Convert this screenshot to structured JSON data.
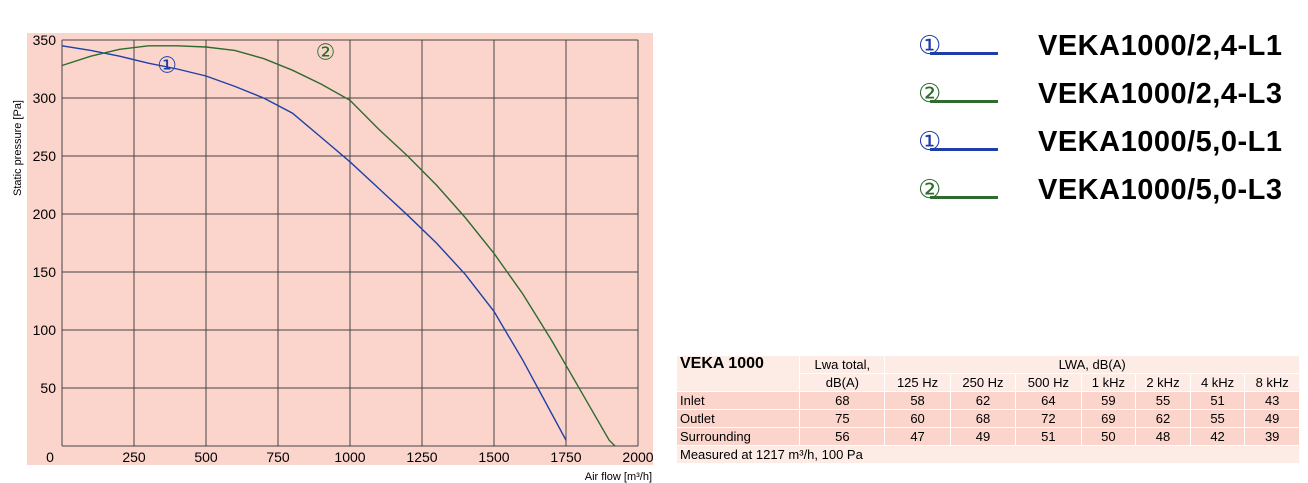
{
  "chart_data": {
    "type": "line",
    "xlabel": "Air flow [m³/h]",
    "ylabel": "Static pressure [Pa]",
    "xlim": [
      0,
      2000
    ],
    "ylim": [
      0,
      350
    ],
    "xticks": [
      0,
      250,
      500,
      750,
      1000,
      1250,
      1500,
      1750,
      2000
    ],
    "yticks": [
      50,
      100,
      150,
      200,
      250,
      300,
      350
    ],
    "grid": true,
    "series": [
      {
        "name": "①",
        "color": "#1f3fa8",
        "x": [
          0,
          100,
          200,
          300,
          400,
          500,
          600,
          700,
          800,
          900,
          1000,
          1100,
          1200,
          1300,
          1400,
          1500,
          1600,
          1700,
          1750
        ],
        "y": [
          345,
          341,
          336,
          330,
          325,
          319,
          310,
          300,
          287,
          266,
          245,
          222,
          199,
          175,
          148,
          116,
          74,
          28,
          5
        ]
      },
      {
        "name": "②",
        "color": "#2e6b2e",
        "x": [
          0,
          100,
          200,
          300,
          400,
          500,
          600,
          700,
          800,
          900,
          1000,
          1100,
          1200,
          1300,
          1400,
          1500,
          1600,
          1700,
          1800,
          1900,
          1920
        ],
        "y": [
          328,
          336,
          342,
          345,
          345,
          344,
          341,
          334,
          324,
          312,
          298,
          273,
          250,
          225,
          197,
          166,
          131,
          91,
          48,
          5,
          0
        ]
      }
    ],
    "annotations": [
      {
        "text": "①",
        "x": 365,
        "y": 322,
        "color": "#1f3fa8"
      },
      {
        "text": "②",
        "x": 915,
        "y": 333,
        "color": "#2e6b2e"
      }
    ]
  },
  "legend": [
    {
      "symbol": "①",
      "label": "VEKA1000/2,4-L1",
      "color": "#1f3fa8"
    },
    {
      "symbol": "②",
      "label": "VEKA1000/2,4-L3",
      "color": "#2e6b2e"
    },
    {
      "symbol": "①",
      "label": "VEKA1000/5,0-L1",
      "color": "#1f3fa8"
    },
    {
      "symbol": "②",
      "label": "VEKA1000/5,0-L3",
      "color": "#2e6b2e"
    }
  ],
  "table": {
    "title": "VEKA 1000",
    "total_header": "Lwa total,",
    "total_unit": "dB(A)",
    "lwa_header": "LWA, dB(A)",
    "freqs": [
      "125 Hz",
      "250 Hz",
      "500 Hz",
      "1 kHz",
      "2 kHz",
      "4 kHz",
      "8 kHz"
    ],
    "rows": [
      {
        "label": "Inlet",
        "total": "68",
        "values": [
          "58",
          "62",
          "64",
          "59",
          "55",
          "51",
          "43"
        ]
      },
      {
        "label": "Outlet",
        "total": "75",
        "values": [
          "60",
          "68",
          "72",
          "69",
          "62",
          "55",
          "49"
        ]
      },
      {
        "label": "Surrounding",
        "total": "56",
        "values": [
          "47",
          "49",
          "51",
          "50",
          "48",
          "42",
          "39"
        ]
      }
    ],
    "footer": "Measured at 1217 m³/h, 100 Pa"
  },
  "colors": {
    "plot_bg": "#fbd5cc",
    "grid": "#444444"
  }
}
